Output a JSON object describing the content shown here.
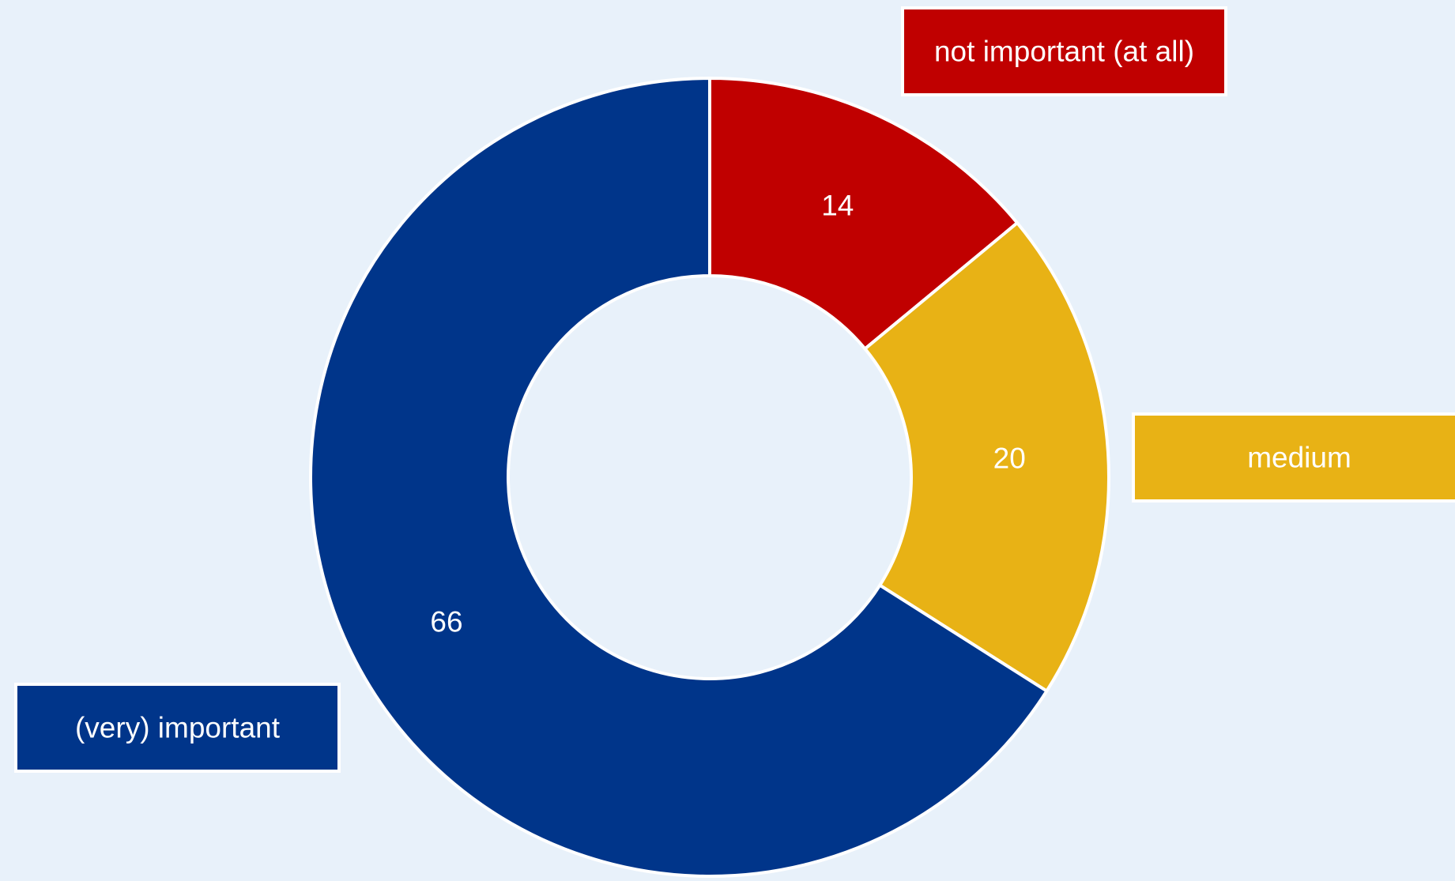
{
  "chart_data": {
    "type": "pie",
    "variant": "donut",
    "slices": [
      {
        "category": "not important (at all)",
        "value": 14,
        "color": "#c00000"
      },
      {
        "category": "medium",
        "value": 20,
        "color": "#e8b215"
      },
      {
        "category": "(very) important",
        "value": 66,
        "color": "#00358a"
      }
    ],
    "data_labels": [
      "14",
      "20",
      "66"
    ],
    "slice_border_color": "#ffffff",
    "background_color": "#e8f1fa",
    "start_angle": "12 o'clock, clockwise"
  }
}
